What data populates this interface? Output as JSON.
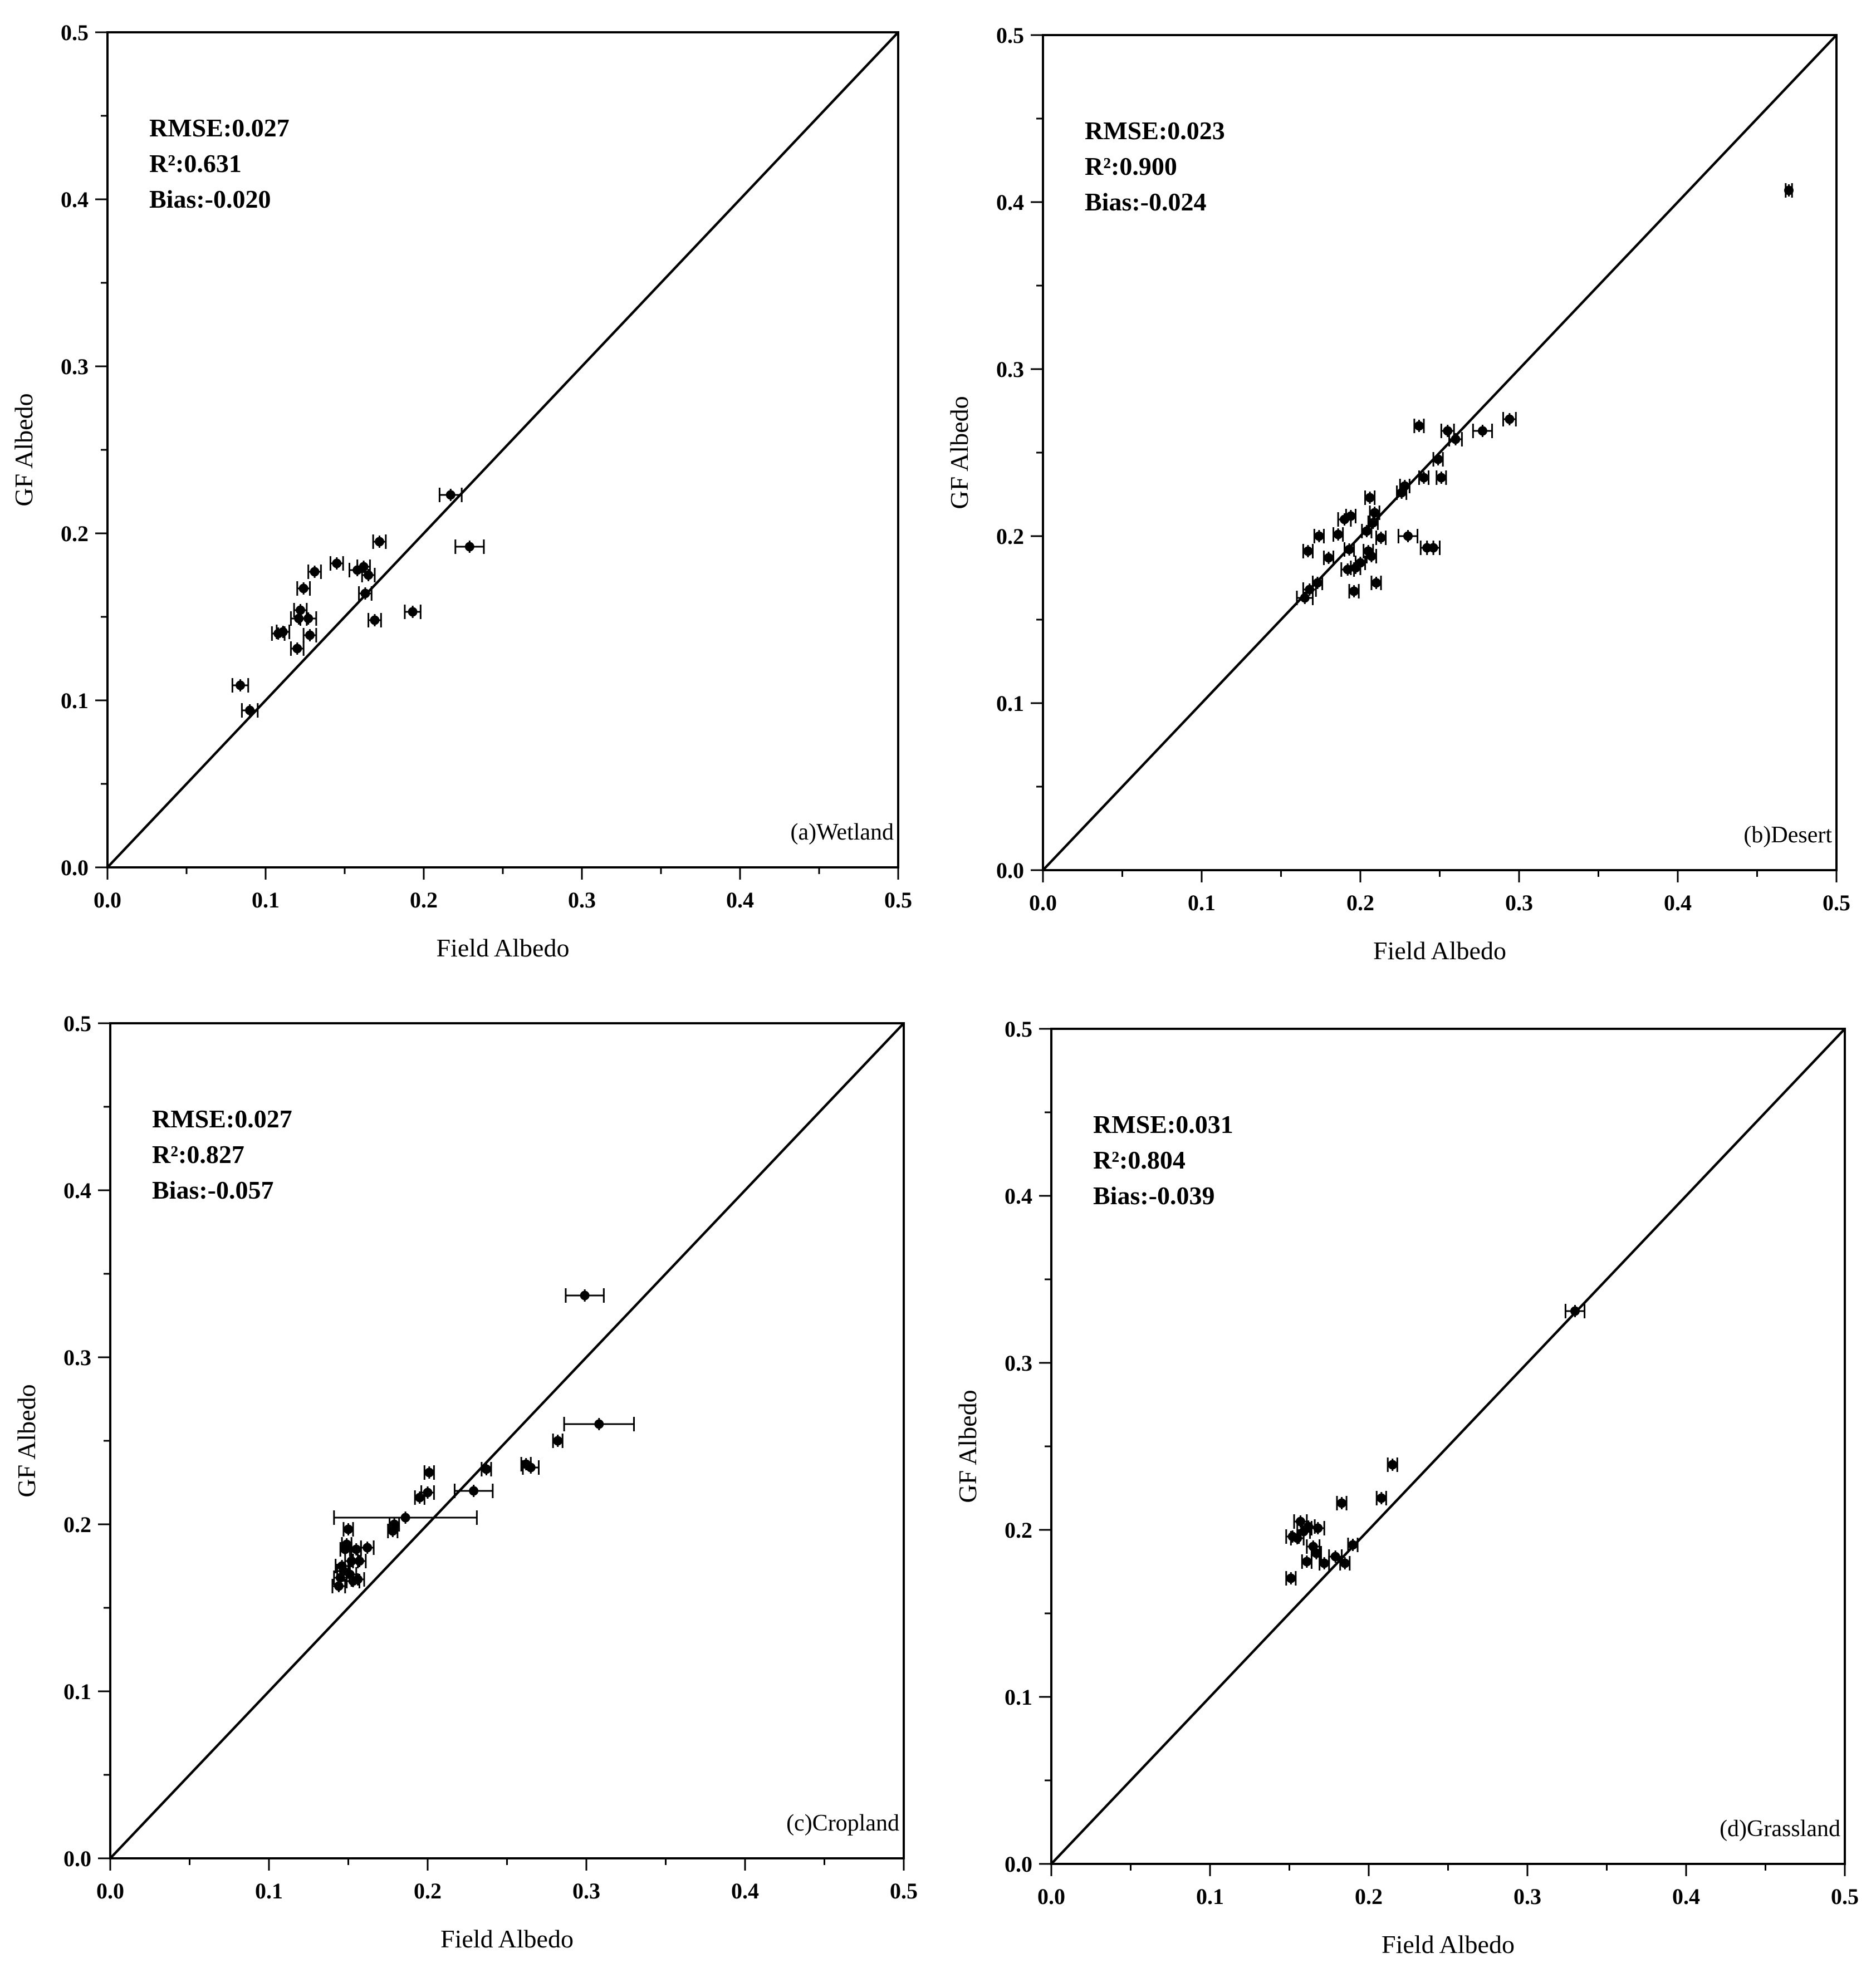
{
  "chart_data": [
    {
      "type": "scatter",
      "panel_label": "(a)Wetland",
      "xlabel": "Field Albedo",
      "ylabel": "GF Albedo",
      "xlim": [
        0,
        0.5
      ],
      "ylim": [
        0,
        0.5
      ],
      "xticks": [
        "0.0",
        "0.1",
        "0.2",
        "0.3",
        "0.4",
        "0.5"
      ],
      "yticks": [
        "0.0",
        "0.1",
        "0.2",
        "0.3",
        "0.4",
        "0.5"
      ],
      "reference_line": "1:1",
      "stats": {
        "rmse": "RMSE:0.027",
        "r2": "R²:0.631",
        "bias": "Bias:-0.020"
      },
      "points": [
        {
          "x": 0.084,
          "y": 0.109,
          "xerr": 0.005
        },
        {
          "x": 0.09,
          "y": 0.094,
          "xerr": 0.005
        },
        {
          "x": 0.108,
          "y": 0.14,
          "xerr": 0.004
        },
        {
          "x": 0.111,
          "y": 0.141,
          "xerr": 0.004
        },
        {
          "x": 0.12,
          "y": 0.131,
          "xerr": 0.004
        },
        {
          "x": 0.121,
          "y": 0.149,
          "xerr": 0.005
        },
        {
          "x": 0.122,
          "y": 0.154,
          "xerr": 0.004
        },
        {
          "x": 0.124,
          "y": 0.167,
          "xerr": 0.004
        },
        {
          "x": 0.127,
          "y": 0.149,
          "xerr": 0.005
        },
        {
          "x": 0.128,
          "y": 0.139,
          "xerr": 0.004
        },
        {
          "x": 0.131,
          "y": 0.177,
          "xerr": 0.004
        },
        {
          "x": 0.145,
          "y": 0.182,
          "xerr": 0.004
        },
        {
          "x": 0.158,
          "y": 0.178,
          "xerr": 0.005
        },
        {
          "x": 0.162,
          "y": 0.18,
          "xerr": 0.004
        },
        {
          "x": 0.165,
          "y": 0.175,
          "xerr": 0.004
        },
        {
          "x": 0.163,
          "y": 0.164,
          "xerr": 0.004
        },
        {
          "x": 0.169,
          "y": 0.148,
          "xerr": 0.004
        },
        {
          "x": 0.172,
          "y": 0.195,
          "xerr": 0.004
        },
        {
          "x": 0.193,
          "y": 0.153,
          "xerr": 0.005
        },
        {
          "x": 0.217,
          "y": 0.223,
          "xerr": 0.007
        },
        {
          "x": 0.229,
          "y": 0.192,
          "xerr": 0.009
        }
      ]
    },
    {
      "type": "scatter",
      "panel_label": "(b)Desert",
      "xlabel": "Field Albedo",
      "ylabel": "GF Albedo",
      "xlim": [
        0,
        0.5
      ],
      "ylim": [
        0,
        0.5
      ],
      "xticks": [
        "0.0",
        "0.1",
        "0.2",
        "0.3",
        "0.4",
        "0.5"
      ],
      "yticks": [
        "0.0",
        "0.1",
        "0.2",
        "0.3",
        "0.4",
        "0.5"
      ],
      "reference_line": "1:1",
      "stats": {
        "rmse": "RMSE:0.023",
        "r2": "R²:0.900",
        "bias": "Bias:-0.024"
      },
      "points": [
        {
          "x": 0.165,
          "y": 0.163,
          "xerr": 0.005
        },
        {
          "x": 0.167,
          "y": 0.191,
          "xerr": 0.003
        },
        {
          "x": 0.168,
          "y": 0.168,
          "xerr": 0.004
        },
        {
          "x": 0.173,
          "y": 0.172,
          "xerr": 0.003
        },
        {
          "x": 0.174,
          "y": 0.2,
          "xerr": 0.003
        },
        {
          "x": 0.18,
          "y": 0.187,
          "xerr": 0.003
        },
        {
          "x": 0.186,
          "y": 0.201,
          "xerr": 0.003
        },
        {
          "x": 0.19,
          "y": 0.21,
          "xerr": 0.004
        },
        {
          "x": 0.192,
          "y": 0.18,
          "xerr": 0.004
        },
        {
          "x": 0.193,
          "y": 0.192,
          "xerr": 0.003
        },
        {
          "x": 0.194,
          "y": 0.212,
          "xerr": 0.003
        },
        {
          "x": 0.196,
          "y": 0.167,
          "xerr": 0.003
        },
        {
          "x": 0.197,
          "y": 0.181,
          "xerr": 0.003
        },
        {
          "x": 0.2,
          "y": 0.184,
          "xerr": 0.003
        },
        {
          "x": 0.204,
          "y": 0.203,
          "xerr": 0.003
        },
        {
          "x": 0.205,
          "y": 0.191,
          "xerr": 0.003
        },
        {
          "x": 0.206,
          "y": 0.223,
          "xerr": 0.003
        },
        {
          "x": 0.207,
          "y": 0.188,
          "xerr": 0.003
        },
        {
          "x": 0.208,
          "y": 0.208,
          "xerr": 0.003
        },
        {
          "x": 0.209,
          "y": 0.214,
          "xerr": 0.003
        },
        {
          "x": 0.21,
          "y": 0.172,
          "xerr": 0.003
        },
        {
          "x": 0.213,
          "y": 0.199,
          "xerr": 0.003
        },
        {
          "x": 0.226,
          "y": 0.226,
          "xerr": 0.003
        },
        {
          "x": 0.228,
          "y": 0.23,
          "xerr": 0.003
        },
        {
          "x": 0.23,
          "y": 0.2,
          "xerr": 0.006
        },
        {
          "x": 0.237,
          "y": 0.266,
          "xerr": 0.003
        },
        {
          "x": 0.24,
          "y": 0.235,
          "xerr": 0.003
        },
        {
          "x": 0.242,
          "y": 0.193,
          "xerr": 0.004
        },
        {
          "x": 0.246,
          "y": 0.193,
          "xerr": 0.004
        },
        {
          "x": 0.249,
          "y": 0.246,
          "xerr": 0.003
        },
        {
          "x": 0.251,
          "y": 0.235,
          "xerr": 0.003
        },
        {
          "x": 0.255,
          "y": 0.263,
          "xerr": 0.004
        },
        {
          "x": 0.26,
          "y": 0.258,
          "xerr": 0.004
        },
        {
          "x": 0.277,
          "y": 0.263,
          "xerr": 0.006
        },
        {
          "x": 0.294,
          "y": 0.27,
          "xerr": 0.004
        },
        {
          "x": 0.47,
          "y": 0.407,
          "xerr": 0.002
        }
      ]
    },
    {
      "type": "scatter",
      "panel_label": "(c)Cropland",
      "xlabel": "Field Albedo",
      "ylabel": "GF Albedo",
      "xlim": [
        0,
        0.5
      ],
      "ylim": [
        0,
        0.5
      ],
      "xticks": [
        "0.0",
        "0.1",
        "0.2",
        "0.3",
        "0.4",
        "0.5"
      ],
      "yticks": [
        "0.0",
        "0.1",
        "0.2",
        "0.3",
        "0.4",
        "0.5"
      ],
      "reference_line": "1:1",
      "stats": {
        "rmse": "RMSE:0.027",
        "r2": "R²:0.827",
        "bias": "Bias:-0.057"
      },
      "points": [
        {
          "x": 0.144,
          "y": 0.163,
          "xerr": 0.004
        },
        {
          "x": 0.145,
          "y": 0.168,
          "xerr": 0.004
        },
        {
          "x": 0.146,
          "y": 0.175,
          "xerr": 0.004
        },
        {
          "x": 0.147,
          "y": 0.172,
          "xerr": 0.004
        },
        {
          "x": 0.148,
          "y": 0.185,
          "xerr": 0.003
        },
        {
          "x": 0.149,
          "y": 0.188,
          "xerr": 0.003
        },
        {
          "x": 0.15,
          "y": 0.197,
          "xerr": 0.003
        },
        {
          "x": 0.151,
          "y": 0.17,
          "xerr": 0.004
        },
        {
          "x": 0.152,
          "y": 0.178,
          "xerr": 0.004
        },
        {
          "x": 0.153,
          "y": 0.166,
          "xerr": 0.004
        },
        {
          "x": 0.155,
          "y": 0.185,
          "xerr": 0.003
        },
        {
          "x": 0.156,
          "y": 0.167,
          "xerr": 0.004
        },
        {
          "x": 0.157,
          "y": 0.178,
          "xerr": 0.004
        },
        {
          "x": 0.162,
          "y": 0.186,
          "xerr": 0.004
        },
        {
          "x": 0.178,
          "y": 0.196,
          "xerr": 0.003
        },
        {
          "x": 0.179,
          "y": 0.2,
          "xerr": 0.003
        },
        {
          "x": 0.186,
          "y": 0.204,
          "xerr": 0.045
        },
        {
          "x": 0.195,
          "y": 0.216,
          "xerr": 0.003
        },
        {
          "x": 0.2,
          "y": 0.219,
          "xerr": 0.004
        },
        {
          "x": 0.201,
          "y": 0.231,
          "xerr": 0.003
        },
        {
          "x": 0.229,
          "y": 0.22,
          "xerr": 0.012
        },
        {
          "x": 0.237,
          "y": 0.233,
          "xerr": 0.003
        },
        {
          "x": 0.262,
          "y": 0.236,
          "xerr": 0.003
        },
        {
          "x": 0.265,
          "y": 0.234,
          "xerr": 0.005
        },
        {
          "x": 0.282,
          "y": 0.25,
          "xerr": 0.003
        },
        {
          "x": 0.299,
          "y": 0.337,
          "xerr": 0.012
        },
        {
          "x": 0.308,
          "y": 0.26,
          "xerr": 0.022
        }
      ]
    },
    {
      "type": "scatter",
      "panel_label": "(d)Grassland",
      "xlabel": "Field Albedo",
      "ylabel": "GF Albedo",
      "xlim": [
        0,
        0.5
      ],
      "ylim": [
        0,
        0.5
      ],
      "xticks": [
        "0.0",
        "0.1",
        "0.2",
        "0.3",
        "0.4",
        "0.5"
      ],
      "yticks": [
        "0.0",
        "0.1",
        "0.2",
        "0.3",
        "0.4",
        "0.5"
      ],
      "reference_line": "1:1",
      "stats": {
        "rmse": "RMSE:0.031",
        "r2": "R²:0.804",
        "bias": "Bias:-0.039"
      },
      "points": [
        {
          "x": 0.151,
          "y": 0.171,
          "xerr": 0.003
        },
        {
          "x": 0.152,
          "y": 0.196,
          "xerr": 0.004
        },
        {
          "x": 0.155,
          "y": 0.195,
          "xerr": 0.004
        },
        {
          "x": 0.157,
          "y": 0.205,
          "xerr": 0.004
        },
        {
          "x": 0.159,
          "y": 0.199,
          "xerr": 0.004
        },
        {
          "x": 0.161,
          "y": 0.181,
          "xerr": 0.003
        },
        {
          "x": 0.162,
          "y": 0.202,
          "xerr": 0.004
        },
        {
          "x": 0.165,
          "y": 0.19,
          "xerr": 0.004
        },
        {
          "x": 0.167,
          "y": 0.186,
          "xerr": 0.003
        },
        {
          "x": 0.168,
          "y": 0.201,
          "xerr": 0.004
        },
        {
          "x": 0.172,
          "y": 0.18,
          "xerr": 0.003
        },
        {
          "x": 0.179,
          "y": 0.184,
          "xerr": 0.004
        },
        {
          "x": 0.183,
          "y": 0.216,
          "xerr": 0.003
        },
        {
          "x": 0.185,
          "y": 0.18,
          "xerr": 0.003
        },
        {
          "x": 0.19,
          "y": 0.191,
          "xerr": 0.003
        },
        {
          "x": 0.208,
          "y": 0.219,
          "xerr": 0.003
        },
        {
          "x": 0.215,
          "y": 0.239,
          "xerr": 0.003
        },
        {
          "x": 0.33,
          "y": 0.331,
          "xerr": 0.006
        }
      ]
    }
  ]
}
